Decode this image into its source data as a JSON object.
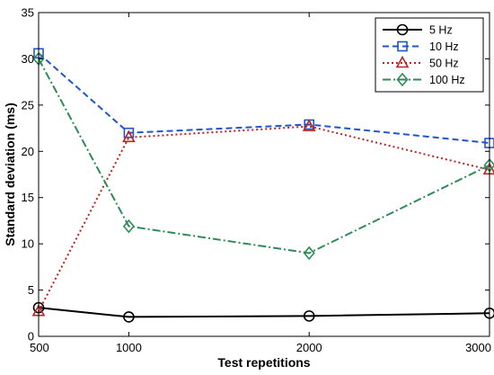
{
  "chart_data": {
    "type": "line",
    "title": "",
    "xlabel": "Test repetitions",
    "ylabel": "Standard deviation (ms)",
    "x": [
      500,
      1000,
      2000,
      3000
    ],
    "x_ticks": [
      "500",
      "1000",
      "2000",
      "3000"
    ],
    "y_ticks": [
      "0",
      "5",
      "10",
      "15",
      "20",
      "25",
      "30",
      "35"
    ],
    "ylim": [
      0,
      35
    ],
    "grid": false,
    "legend_position": "top-right",
    "series": [
      {
        "name": "5 Hz",
        "values": [
          3.1,
          2.1,
          2.2,
          2.5
        ],
        "color": "#000000",
        "dash": "solid",
        "marker": "circle"
      },
      {
        "name": "10 Hz",
        "values": [
          30.6,
          22.0,
          22.9,
          20.9
        ],
        "color": "#2255cc",
        "dash": "dashed",
        "marker": "square"
      },
      {
        "name": "50 Hz",
        "values": [
          2.7,
          21.5,
          22.7,
          18.0
        ],
        "color": "#b8241f",
        "dash": "dotted",
        "marker": "triangle"
      },
      {
        "name": "100 Hz",
        "values": [
          30.0,
          11.9,
          9.0,
          18.5
        ],
        "color": "#2e8b57",
        "dash": "dashdot",
        "marker": "diamond"
      }
    ]
  }
}
